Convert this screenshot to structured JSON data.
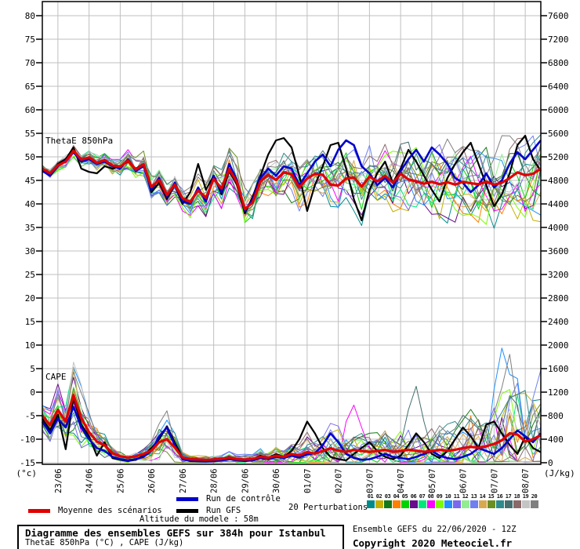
{
  "legend": {
    "mean_label": "Moyenne des scénarios",
    "control_label": "Run de contrôle",
    "gfs_label": "Run GFS",
    "perturbations_label": "20 Perturbations",
    "altitude_text": "Altitude du modele : 58m"
  },
  "footer": {
    "title": "Diagramme des ensembles GEFS sur 384h pour Istanbul",
    "subtitle": "ThetaE 850hPa (°C) , CAPE (J/kg)",
    "run_info": "Ensemble GEFS du 22/06/2020 - 12Z",
    "copyright": "Copyright 2020 Meteociel.fr"
  },
  "chart_data": {
    "type": "line",
    "panel_labels": {
      "thetae": "ThetaE 850hPa",
      "cape": "CAPE"
    },
    "left_axis": {
      "unit": "(°c)",
      "min": -15,
      "max": 80,
      "step": 5,
      "ticks": [
        "80",
        "75",
        "70",
        "65",
        "60",
        "55",
        "50",
        "45",
        "40",
        "35",
        "30",
        "25",
        "20",
        "15",
        "10",
        "5",
        "0",
        "-5",
        "-10",
        "-15"
      ]
    },
    "right_axis": {
      "unit": "(J/kg)",
      "min": 0,
      "max": 7600,
      "step": 400,
      "ticks": [
        "7600",
        "7200",
        "6800",
        "6400",
        "6000",
        "5600",
        "5200",
        "4800",
        "4400",
        "4000",
        "3600",
        "3200",
        "2800",
        "2400",
        "2000",
        "1600",
        "1200",
        "800",
        "400",
        "0"
      ]
    },
    "x_axis": {
      "dates": [
        "23/06",
        "24/06",
        "25/06",
        "26/06",
        "27/06",
        "28/06",
        "29/06",
        "30/06",
        "01/07",
        "02/07",
        "03/07",
        "04/07",
        "05/07",
        "06/07",
        "07/07",
        "08/07"
      ],
      "hours_total": 384,
      "step_hours": 6,
      "first_tick_hour": 12,
      "tick_interval_hours": 24
    },
    "grid": {
      "color": "#BFBFBF",
      "frame_color": "#000000"
    },
    "series": {
      "mean": {
        "name": "Moyenne des scénarios",
        "color": "#E00000",
        "width": 3.2,
        "thetae": [
          47.5,
          46.5,
          48.2,
          49.0,
          51.3,
          49.4,
          49.9,
          48.7,
          49.3,
          48.2,
          47.9,
          49.2,
          47.3,
          48.4,
          43.6,
          45.1,
          41.9,
          44.1,
          41.2,
          40.4,
          42.9,
          41.3,
          45.3,
          43.3,
          47.4,
          44.6,
          38.9,
          40.3,
          44.8,
          46.2,
          45.1,
          46.7,
          46.3,
          43.5,
          45.4,
          46.4,
          46.2,
          44.1,
          43.9,
          45.4,
          45.6,
          43.7,
          45.8,
          44.8,
          46.0,
          44.5,
          46.4,
          45.2,
          44.8,
          44.3,
          44.7,
          44.2,
          44.6,
          44.1,
          44.7,
          44.4,
          44.2,
          44.7,
          44.1,
          44.5,
          45.5,
          46.7,
          46.1,
          46.4,
          47.5
        ],
        "cape": [
          800,
          640,
          900,
          700,
          1150,
          760,
          520,
          360,
          300,
          160,
          110,
          90,
          110,
          150,
          210,
          350,
          400,
          260,
          90,
          60,
          55,
          50,
          55,
          65,
          85,
          60,
          55,
          65,
          100,
          85,
          120,
          100,
          150,
          125,
          180,
          155,
          200,
          245,
          205,
          185,
          220,
          200,
          185,
          200,
          220,
          185,
          200,
          220,
          205,
          185,
          200,
          220,
          205,
          220,
          250,
          270,
          255,
          280,
          320,
          380,
          500,
          480,
          360,
          400,
          470
        ]
      },
      "control": {
        "name": "Run de contrôle",
        "color": "#0000CC",
        "width": 2.6,
        "thetae": [
          47.0,
          46.0,
          48.0,
          49.2,
          51.0,
          49.0,
          49.5,
          48.5,
          49.0,
          48.0,
          47.5,
          49.5,
          47.0,
          48.0,
          43.0,
          45.5,
          41.5,
          44.5,
          40.5,
          40.0,
          43.5,
          40.5,
          46.0,
          42.5,
          48.5,
          45.0,
          38.5,
          41.0,
          45.5,
          47.5,
          46.0,
          48.0,
          47.5,
          44.0,
          46.5,
          49.0,
          50.5,
          48.0,
          51.5,
          53.5,
          52.5,
          48.0,
          46.5,
          44.0,
          45.5,
          43.5,
          47.0,
          49.5,
          51.5,
          49.0,
          52.0,
          50.5,
          48.5,
          45.5,
          44.5,
          42.5,
          44.0,
          46.5,
          43.5,
          45.0,
          48.5,
          51.0,
          49.5,
          51.5,
          53.5
        ],
        "cape": [
          700,
          500,
          750,
          600,
          950,
          600,
          400,
          250,
          200,
          100,
          60,
          40,
          60,
          100,
          200,
          450,
          600,
          300,
          60,
          30,
          25,
          20,
          30,
          40,
          60,
          40,
          30,
          40,
          80,
          60,
          100,
          80,
          120,
          90,
          140,
          160,
          300,
          500,
          350,
          150,
          80,
          50,
          60,
          100,
          150,
          100,
          80,
          60,
          100,
          150,
          200,
          120,
          80,
          60,
          100,
          150,
          250,
          200,
          150,
          250,
          400,
          550,
          450,
          350,
          500
        ]
      },
      "gfs": {
        "name": "Run GFS",
        "color": "#000000",
        "width": 2.2,
        "thetae": [
          47.5,
          46.2,
          48.5,
          49.5,
          52.0,
          47.5,
          46.8,
          46.5,
          48.0,
          47.5,
          48.0,
          49.0,
          47.5,
          48.5,
          42.5,
          44.5,
          41.0,
          44.0,
          40.0,
          42.5,
          48.5,
          43.0,
          46.0,
          42.0,
          47.0,
          44.0,
          38.0,
          41.5,
          46.0,
          50.5,
          53.5,
          54.0,
          52.0,
          46.0,
          38.5,
          44.0,
          48.0,
          52.5,
          53.0,
          47.5,
          41.0,
          36.5,
          43.0,
          46.5,
          49.0,
          44.5,
          47.5,
          51.5,
          49.0,
          46.0,
          43.0,
          40.5,
          45.5,
          48.5,
          51.0,
          53.0,
          48.5,
          44.0,
          39.5,
          42.0,
          46.5,
          52.5,
          54.5,
          49.5,
          47.0
        ],
        "cape": [
          750,
          550,
          820,
          230,
          1100,
          650,
          450,
          120,
          350,
          80,
          50,
          30,
          50,
          120,
          250,
          400,
          620,
          350,
          80,
          40,
          30,
          25,
          35,
          50,
          90,
          60,
          50,
          60,
          120,
          80,
          150,
          100,
          200,
          400,
          700,
          500,
          250,
          100,
          60,
          40,
          150,
          250,
          350,
          200,
          100,
          60,
          120,
          300,
          500,
          350,
          150,
          80,
          200,
          400,
          600,
          450,
          250,
          650,
          700,
          500,
          300,
          150,
          450,
          250,
          180
        ]
      }
    },
    "perturbations": {
      "count": 20,
      "seed": 7,
      "width": 1,
      "labels": [
        "01",
        "02",
        "03",
        "04",
        "05",
        "06",
        "07",
        "08",
        "09",
        "10",
        "11",
        "12",
        "13",
        "14",
        "15",
        "16",
        "17",
        "18",
        "19",
        "20"
      ],
      "colors": [
        "#008B8B",
        "#C3B000",
        "#157915",
        "#FF7F00",
        "#00D400",
        "#6A0D8C",
        "#00E87A",
        "#FF00FF",
        "#7CFC00",
        "#1E90FF",
        "#7B68EE",
        "#90EE90",
        "#6F7FF0",
        "#D8A94E",
        "#6B8E23",
        "#2E8B8B",
        "#456F6F",
        "#8B6969",
        "#C4C4C4",
        "#808080"
      ],
      "thetae_spread": {
        "base": 0.7,
        "growth": 0.095,
        "bias_scale": 3.2
      },
      "cape_noise": {
        "base": 0.35,
        "growth_div": 50
      },
      "cape_spikes": [
        {
          "member": 10,
          "i": 58,
          "jkg": 1250
        },
        {
          "member": 10,
          "i": 59,
          "jkg": 1950
        },
        {
          "member": 10,
          "i": 60,
          "jkg": 1500
        },
        {
          "member": 10,
          "i": 61,
          "jkg": 600
        },
        {
          "member": 17,
          "i": 47,
          "jkg": 900
        },
        {
          "member": 17,
          "i": 48,
          "jkg": 1300
        },
        {
          "member": 17,
          "i": 49,
          "jkg": 700
        },
        {
          "member": 8,
          "i": 39,
          "jkg": 700
        },
        {
          "member": 8,
          "i": 40,
          "jkg": 980
        },
        {
          "member": 8,
          "i": 41,
          "jkg": 600
        },
        {
          "member": 2,
          "i": 62,
          "jkg": 1050
        },
        {
          "member": 14,
          "i": 60,
          "jkg": 850
        },
        {
          "member": 4,
          "i": 55,
          "jkg": 800
        },
        {
          "member": 13,
          "i": 63,
          "jkg": 1100
        }
      ]
    }
  }
}
